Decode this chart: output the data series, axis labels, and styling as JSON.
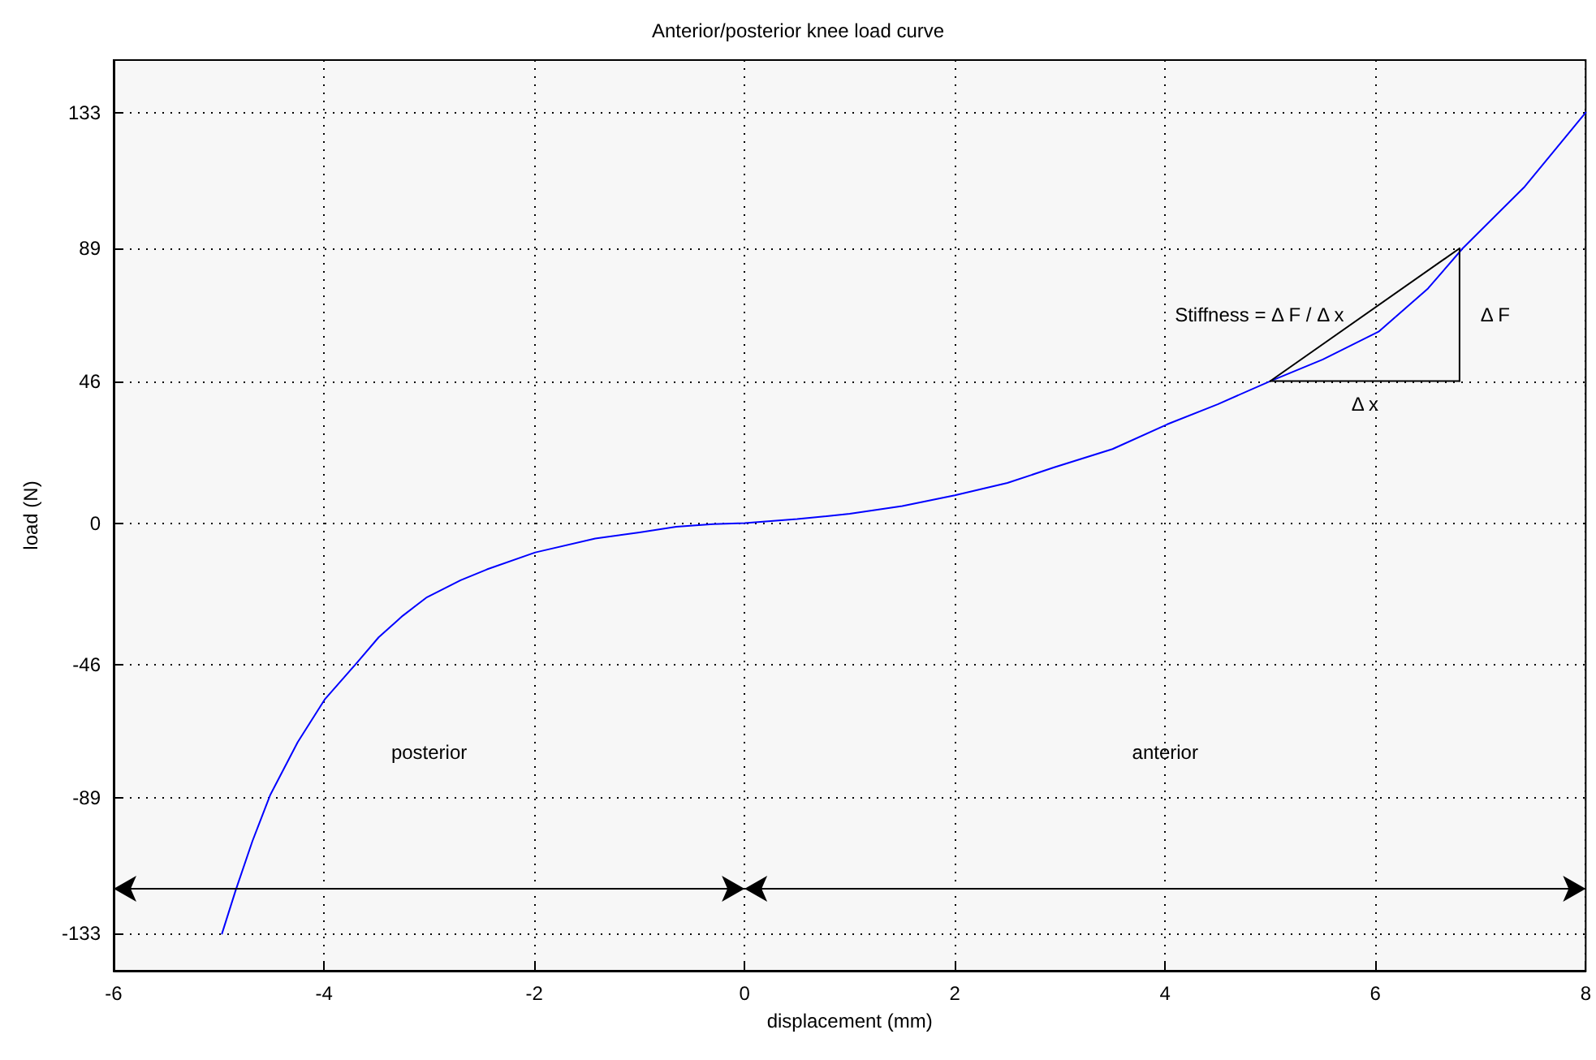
{
  "chart_data": {
    "type": "line",
    "title": "Anterior/posterior knee load curve",
    "xlabel": "displacement (mm)",
    "ylabel": "load (N)",
    "series": [
      {
        "color": "#0000ff",
        "x": [
          -4.97,
          -4.84,
          -4.68,
          -4.51,
          -4.25,
          -3.99,
          -3.68,
          -3.48,
          -3.25,
          -3.02,
          -2.7,
          -2.45,
          -1.99,
          -1.42,
          -1.0,
          -0.65,
          -0.3,
          0,
          0.5,
          1,
          1.5,
          2,
          2.5,
          2.94,
          3.5,
          4.02,
          4.5,
          5.0,
          5.5,
          6.03,
          6.5,
          6.83,
          7.42,
          8
        ],
        "values": [
          -133,
          -119,
          -103,
          -88,
          -71,
          -57,
          -45,
          -37,
          -30,
          -24,
          -18.5,
          -15,
          -9.5,
          -5,
          -3,
          -1.2,
          -0.3,
          0,
          1.3,
          3,
          5.5,
          9,
          13,
          18,
          24,
          32,
          38.5,
          46,
          53,
          62,
          76,
          89,
          109,
          133
        ]
      },
      {
        "color": "#000000",
        "x": [
          5.0,
          6.8
        ],
        "values": [
          46,
          89
        ]
      },
      {
        "color": "#000000",
        "x": [
          5.0,
          6.8
        ],
        "values": [
          46,
          46
        ]
      },
      {
        "color": "#000000",
        "x": [
          6.8,
          6.8
        ],
        "values": [
          46,
          89
        ]
      }
    ],
    "xlim": [
      -6,
      8
    ],
    "xticks": [
      -6,
      -4,
      -2,
      0,
      2,
      4,
      6,
      8
    ],
    "ylim": [
      -145,
      150
    ],
    "yticks": [
      -133,
      -89,
      -46,
      0,
      46,
      89,
      133
    ],
    "grid": true,
    "marker": "none",
    "line_style": "solid",
    "bands": [
      {
        "axis": "x",
        "from": -6,
        "to": 0,
        "label": "posterior"
      },
      {
        "axis": "x",
        "from": 0,
        "to": 8,
        "label": "anterior"
      }
    ],
    "annotations": [
      "Stiffness = Δ F / Δ x",
      "Δ F",
      "Δ x"
    ]
  }
}
